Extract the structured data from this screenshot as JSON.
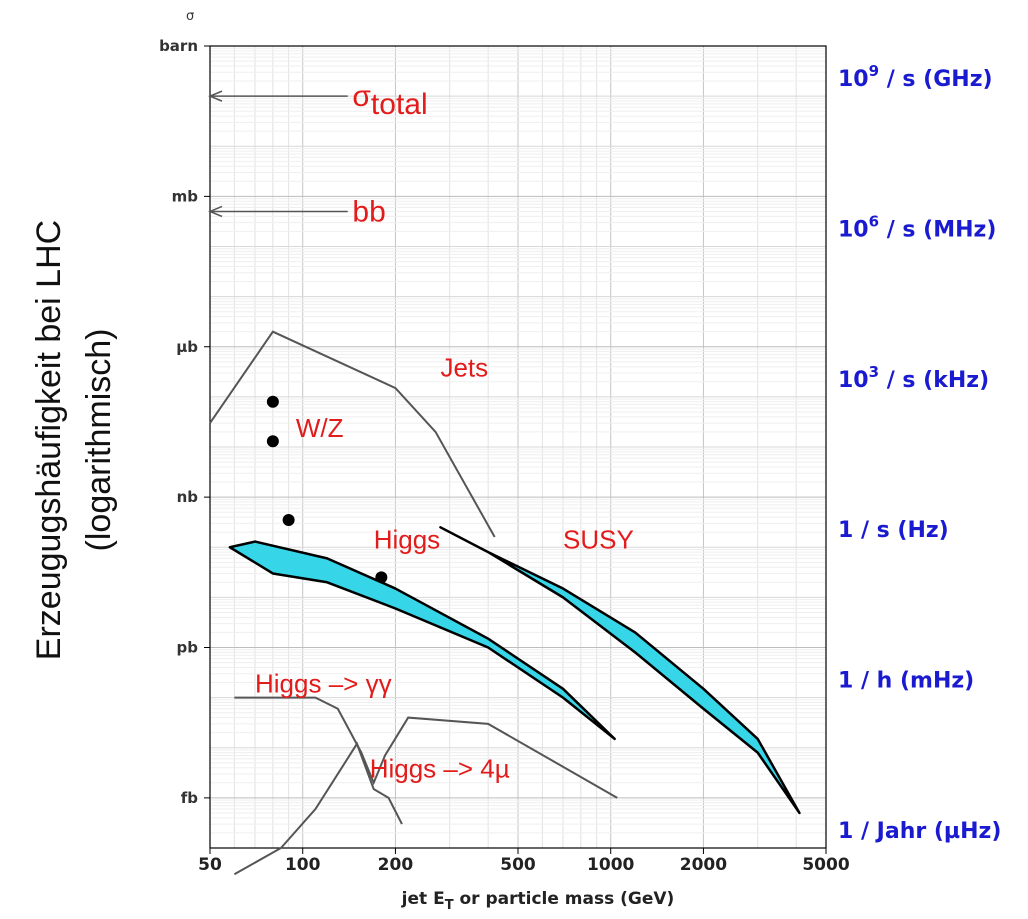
{
  "chart_data": {
    "type": "line",
    "title": "",
    "ylabel": [
      "Erzeugugshäufigkeit bei LHC",
      "(logarithmisch)"
    ],
    "xlabel_parts": [
      "jet E",
      "T",
      " or particle mass (GeV)"
    ],
    "y_symbol": "σ",
    "xscale": "log",
    "yscale": "log",
    "xlim": [
      50,
      5000
    ],
    "ylim_barn": [
      1e-16,
      1
    ],
    "x_ticks": [
      50,
      100,
      200,
      500,
      1000,
      2000,
      5000
    ],
    "x_tick_labels": [
      "50",
      "100",
      "200",
      "500",
      "1000",
      "2000",
      "5000"
    ],
    "y_ticks": [
      {
        "label": "barn",
        "value": 1
      },
      {
        "label": "mb",
        "value": 0.001
      },
      {
        "label": "µb",
        "value": 1e-06
      },
      {
        "label": "nb",
        "value": 1e-09
      },
      {
        "label": "pb",
        "value": 1e-12
      },
      {
        "label": "fb",
        "value": 1e-15
      }
    ],
    "rate_axis": [
      {
        "base": "10",
        "exp": "9",
        "rest": " / s (GHz)",
        "value": 1
      },
      {
        "base": "10",
        "exp": "6",
        "rest": " / s (MHz)",
        "value": 0.001
      },
      {
        "base": "10",
        "exp": "3",
        "rest": " / s (kHz)",
        "value": 1e-06
      },
      {
        "base": "1 / s (Hz)",
        "exp": "",
        "rest": "",
        "value": 1e-09
      },
      {
        "base": "1 / h (mHz)",
        "exp": "",
        "rest": "",
        "value": 1e-12
      },
      {
        "base": "1 / Jahr (µHz)",
        "exp": "",
        "rest": "",
        "value": 1e-15
      }
    ],
    "series": [
      {
        "name": "Jets",
        "type": "line",
        "color": "#555555",
        "x": [
          50,
          80,
          200,
          270,
          420
        ],
        "y": [
          3e-08,
          2e-06,
          1.5e-07,
          2e-08,
          1.6e-10
        ]
      },
      {
        "name": "W/Z",
        "type": "scatter",
        "color": "#000000",
        "x": [
          80,
          80,
          90,
          180
        ],
        "y": [
          8e-08,
          1.3e-08,
          3.5e-10,
          2.5e-11
        ]
      },
      {
        "name": "Higgs",
        "type": "band",
        "color": "#36d6e8",
        "upper_x": [
          58,
          70,
          120,
          200,
          400,
          700,
          1030
        ],
        "upper_y": [
          1e-10,
          1.3e-10,
          6e-11,
          1.5e-11,
          1.5e-12,
          1.5e-13,
          1.5e-14
        ],
        "lower_x": [
          1030,
          700,
          400,
          200,
          120,
          80,
          58
        ],
        "lower_y": [
          1.5e-14,
          1e-13,
          1e-12,
          6e-12,
          2e-11,
          3e-11,
          1e-10
        ]
      },
      {
        "name": "SUSY",
        "type": "band",
        "color": "#36d6e8",
        "upper_x": [
          280,
          400,
          700,
          1200,
          2000,
          3000,
          4100
        ],
        "upper_y": [
          2.5e-10,
          8e-11,
          1.5e-11,
          2e-12,
          1.5e-13,
          1.5e-14,
          5e-16
        ],
        "lower_x": [
          4100,
          3000,
          2000,
          1200,
          700,
          400,
          280
        ],
        "lower_y": [
          5e-16,
          8e-15,
          6e-14,
          8e-13,
          1e-11,
          8e-11,
          2.5e-10
        ]
      },
      {
        "name": "Higgs -> γγ",
        "type": "line",
        "color": "#555555",
        "x": [
          60,
          110,
          130,
          155,
          170,
          185,
          220,
          400,
          1050
        ],
        "y": [
          1e-13,
          1e-13,
          6e-14,
          8e-15,
          2e-15,
          7e-15,
          4e-14,
          3e-14,
          1e-15
        ]
      },
      {
        "name": "Higgs -> 4µ",
        "type": "line",
        "color": "#555555",
        "x": [
          60,
          85,
          110,
          130,
          150,
          170,
          190,
          210
        ],
        "y": [
          3e-17,
          1e-16,
          6e-16,
          3e-15,
          1.2e-14,
          1.5e-15,
          1e-15,
          3e-16
        ]
      },
      {
        "name": "σ total",
        "type": "arrow",
        "color": "#555555",
        "x_from": 140,
        "x_to": 50,
        "y": 0.1
      },
      {
        "name": "bb",
        "type": "arrow",
        "color": "#555555",
        "x_from": 140,
        "x_to": 50,
        "y": 0.0005
      }
    ],
    "annotations": [
      {
        "text": "σ",
        "sub": "total",
        "x": 145,
        "y": 0.1,
        "big": true
      },
      {
        "text": "bb",
        "sub": "",
        "x": 145,
        "y": 0.0005,
        "big": true
      },
      {
        "text": "Jets",
        "sub": "",
        "x": 280,
        "y": 4e-07,
        "big": false
      },
      {
        "text": "W/Z",
        "sub": "",
        "x": 95,
        "y": 2.5e-08,
        "big": false
      },
      {
        "text": "Higgs",
        "sub": "",
        "x": 170,
        "y": 1.5e-10,
        "big": false
      },
      {
        "text": "SUSY",
        "sub": "",
        "x": 700,
        "y": 1.5e-10,
        "big": false
      },
      {
        "text": "Higgs –> γγ",
        "sub": "",
        "x": 70,
        "y": 2e-13,
        "big": false
      },
      {
        "text": "Higgs –> 4µ",
        "sub": "",
        "x": 165,
        "y": 4e-15,
        "big": false
      }
    ],
    "grid": true,
    "legend": "none"
  }
}
